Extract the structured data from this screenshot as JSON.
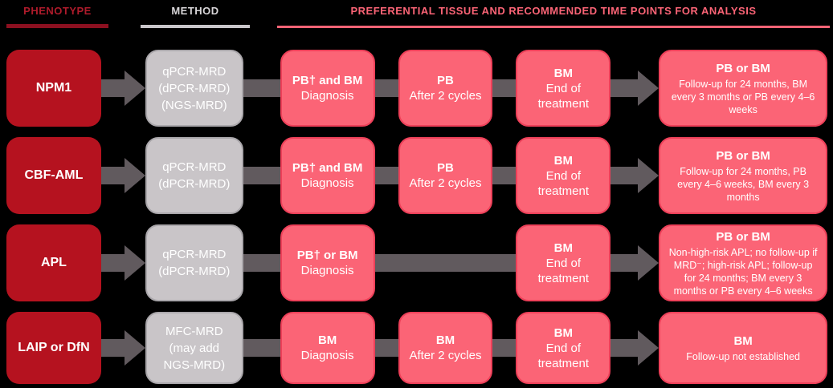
{
  "header": {
    "phenotype": "PHENOTYPE",
    "method": "METHOD",
    "analysis": "PREFERENTIAL TISSUE AND RECOMMENDED TIME POINTS FOR ANALYSIS"
  },
  "colors": {
    "background": "#000000",
    "phenotype_box": "#b5121f",
    "phenotype_header_text": "#ae1b2b",
    "method_box": "#c9c5c8",
    "stage_box": "#fb6476",
    "stage_box_border": "#ee4059",
    "arrow": "#615a5e"
  },
  "rows": [
    {
      "phenotype": "NPM1",
      "method": "qPCR-MRD\n(dPCR-MRD)\n(NGS-MRD)",
      "diagnosis": {
        "tissue": "PB† and BM",
        "time": "Diagnosis"
      },
      "cycles": {
        "tissue": "PB",
        "time": "After 2 cycles"
      },
      "eot": {
        "tissue": "BM",
        "time": "End of treatment"
      },
      "followup": {
        "tissue": "PB or BM",
        "time": "Follow-up for 24 months, BM every 3 months or PB every 4–6 weeks"
      }
    },
    {
      "phenotype": "CBF-AML",
      "method": "qPCR-MRD\n(dPCR-MRD)",
      "diagnosis": {
        "tissue": "PB† and BM",
        "time": "Diagnosis"
      },
      "cycles": {
        "tissue": "PB",
        "time": "After 2 cycles"
      },
      "eot": {
        "tissue": "BM",
        "time": "End of treatment"
      },
      "followup": {
        "tissue": "PB or BM",
        "time": "Follow-up for 24 months, PB every 4–6 weeks, BM every 3 months"
      }
    },
    {
      "phenotype": "APL",
      "method": "qPCR-MRD\n(dPCR-MRD)",
      "diagnosis": {
        "tissue": "PB† or BM",
        "time": "Diagnosis"
      },
      "cycles": null,
      "eot": {
        "tissue": "BM",
        "time": "End of treatment"
      },
      "followup": {
        "tissue": "PB or BM",
        "time": "Non-high-risk APL; no follow-up if MRD⁻; high-risk APL; follow-up for 24 months; BM every 3 months or PB every 4–6 weeks"
      }
    },
    {
      "phenotype": "LAIP or DfN",
      "method": "MFC-MRD\n(may add\nNGS-MRD)",
      "diagnosis": {
        "tissue": "BM",
        "time": "Diagnosis"
      },
      "cycles": {
        "tissue": "BM",
        "time": "After 2 cycles"
      },
      "eot": {
        "tissue": "BM",
        "time": "End of treatment"
      },
      "followup": {
        "tissue": "BM",
        "time": "Follow-up not established"
      }
    }
  ]
}
